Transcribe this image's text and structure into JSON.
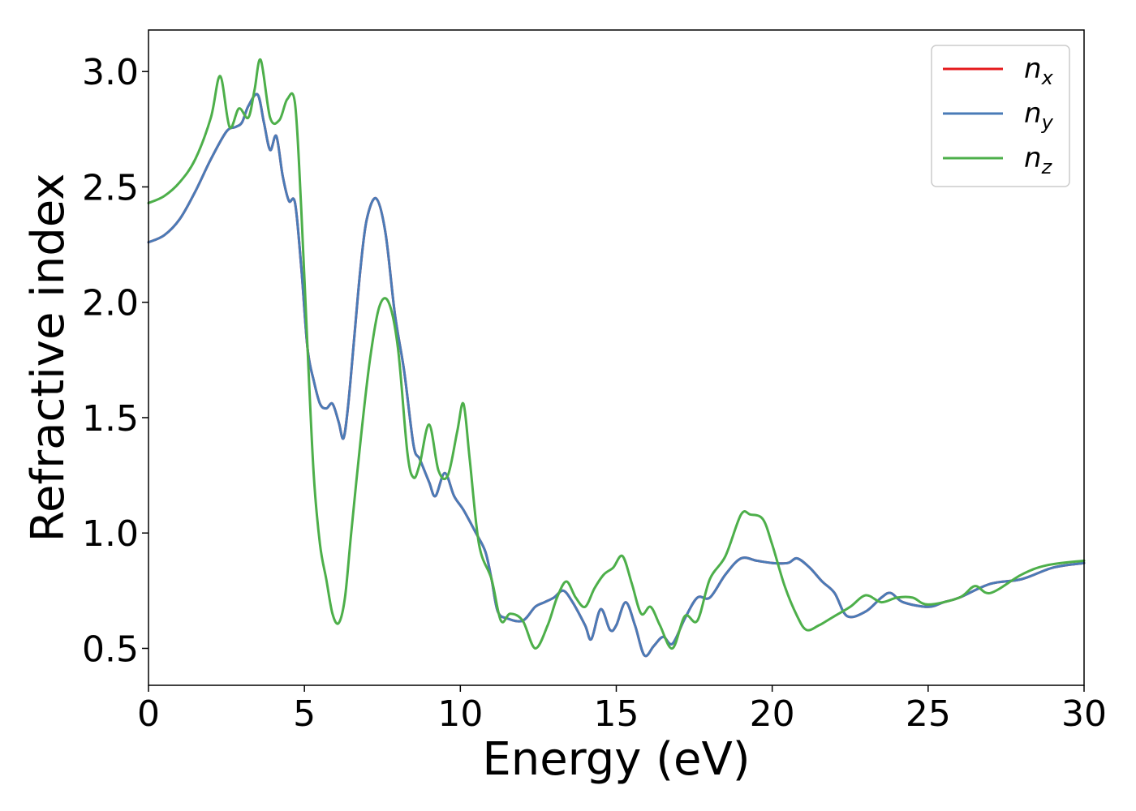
{
  "chart_data": {
    "type": "line",
    "title": "",
    "xlabel": "Energy (eV)",
    "ylabel": "Refractive index",
    "xlim": [
      0,
      30
    ],
    "ylim": [
      0.34,
      3.18
    ],
    "xticks": [
      0,
      5,
      10,
      15,
      20,
      25,
      30
    ],
    "xtick_labels": [
      "0",
      "5",
      "10",
      "15",
      "20",
      "25",
      "30"
    ],
    "yticks": [
      0.5,
      1.0,
      1.5,
      2.0,
      2.5,
      3.0
    ],
    "ytick_labels": [
      "0.5",
      "1.0",
      "1.5",
      "2.0",
      "2.5",
      "3.0"
    ],
    "grid": false,
    "legend_position": "top-right",
    "series": [
      {
        "name": "n_x",
        "label_base": "n",
        "label_sub": "x",
        "color": "#e41a1c",
        "x": [
          0,
          0.5,
          1.0,
          1.5,
          2.0,
          2.5,
          2.8,
          3.0,
          3.2,
          3.5,
          3.7,
          3.9,
          4.1,
          4.3,
          4.5,
          4.7,
          4.9,
          5.1,
          5.3,
          5.5,
          5.7,
          5.9,
          6.1,
          6.25,
          6.4,
          6.6,
          6.8,
          7.0,
          7.3,
          7.6,
          7.9,
          8.2,
          8.5,
          8.7,
          9.0,
          9.2,
          9.5,
          9.8,
          10.1,
          10.5,
          10.8,
          11.0,
          11.2,
          11.5,
          12.0,
          12.4,
          12.7,
          13.0,
          13.3,
          13.6,
          14.0,
          14.2,
          14.5,
          14.8,
          15.0,
          15.3,
          15.6,
          15.9,
          16.2,
          16.5,
          16.8,
          17.2,
          17.6,
          18.0,
          18.5,
          19.0,
          19.5,
          20.0,
          20.5,
          20.8,
          21.2,
          21.6,
          22.0,
          22.4,
          23.0,
          23.5,
          23.8,
          24.2,
          25.0,
          25.5,
          26.0,
          27.0,
          28.0,
          29.0,
          30.0
        ],
        "y": [
          2.26,
          2.29,
          2.36,
          2.48,
          2.62,
          2.74,
          2.76,
          2.78,
          2.85,
          2.9,
          2.78,
          2.66,
          2.72,
          2.55,
          2.44,
          2.43,
          2.15,
          1.8,
          1.66,
          1.56,
          1.54,
          1.56,
          1.48,
          1.41,
          1.55,
          1.85,
          2.15,
          2.36,
          2.45,
          2.3,
          1.95,
          1.7,
          1.38,
          1.32,
          1.22,
          1.16,
          1.26,
          1.16,
          1.1,
          1.0,
          0.92,
          0.8,
          0.66,
          0.63,
          0.62,
          0.68,
          0.7,
          0.72,
          0.75,
          0.7,
          0.6,
          0.54,
          0.67,
          0.58,
          0.6,
          0.7,
          0.6,
          0.47,
          0.51,
          0.55,
          0.52,
          0.63,
          0.72,
          0.72,
          0.82,
          0.89,
          0.88,
          0.87,
          0.87,
          0.89,
          0.85,
          0.79,
          0.74,
          0.64,
          0.66,
          0.72,
          0.74,
          0.7,
          0.68,
          0.7,
          0.72,
          0.78,
          0.8,
          0.85,
          0.87
        ]
      },
      {
        "name": "n_y",
        "label_base": "n",
        "label_sub": "y",
        "color": "#4a7bb7",
        "x": [
          0,
          0.5,
          1.0,
          1.5,
          2.0,
          2.5,
          2.8,
          3.0,
          3.2,
          3.5,
          3.7,
          3.9,
          4.1,
          4.3,
          4.5,
          4.7,
          4.9,
          5.1,
          5.3,
          5.5,
          5.7,
          5.9,
          6.1,
          6.25,
          6.4,
          6.6,
          6.8,
          7.0,
          7.3,
          7.6,
          7.9,
          8.2,
          8.5,
          8.7,
          9.0,
          9.2,
          9.5,
          9.8,
          10.1,
          10.5,
          10.8,
          11.0,
          11.2,
          11.5,
          12.0,
          12.4,
          12.7,
          13.0,
          13.3,
          13.6,
          14.0,
          14.2,
          14.5,
          14.8,
          15.0,
          15.3,
          15.6,
          15.9,
          16.2,
          16.5,
          16.8,
          17.2,
          17.6,
          18.0,
          18.5,
          19.0,
          19.5,
          20.0,
          20.5,
          20.8,
          21.2,
          21.6,
          22.0,
          22.4,
          23.0,
          23.5,
          23.8,
          24.2,
          25.0,
          25.5,
          26.0,
          27.0,
          28.0,
          29.0,
          30.0
        ],
        "y": [
          2.26,
          2.29,
          2.36,
          2.48,
          2.62,
          2.74,
          2.76,
          2.78,
          2.85,
          2.9,
          2.78,
          2.66,
          2.72,
          2.55,
          2.44,
          2.43,
          2.15,
          1.8,
          1.66,
          1.56,
          1.54,
          1.56,
          1.48,
          1.41,
          1.55,
          1.85,
          2.15,
          2.36,
          2.45,
          2.3,
          1.95,
          1.7,
          1.38,
          1.32,
          1.22,
          1.16,
          1.26,
          1.16,
          1.1,
          1.0,
          0.92,
          0.8,
          0.66,
          0.63,
          0.62,
          0.68,
          0.7,
          0.72,
          0.75,
          0.7,
          0.6,
          0.54,
          0.67,
          0.58,
          0.6,
          0.7,
          0.6,
          0.47,
          0.51,
          0.55,
          0.52,
          0.63,
          0.72,
          0.72,
          0.82,
          0.89,
          0.88,
          0.87,
          0.87,
          0.89,
          0.85,
          0.79,
          0.74,
          0.64,
          0.66,
          0.72,
          0.74,
          0.7,
          0.68,
          0.7,
          0.72,
          0.78,
          0.8,
          0.85,
          0.87
        ]
      },
      {
        "name": "n_z",
        "label_base": "n",
        "label_sub": "z",
        "color": "#4daf4a",
        "x": [
          0,
          0.5,
          1.0,
          1.5,
          2.0,
          2.3,
          2.6,
          2.9,
          3.2,
          3.4,
          3.6,
          3.9,
          4.2,
          4.45,
          4.7,
          4.9,
          5.1,
          5.3,
          5.5,
          5.7,
          5.9,
          6.1,
          6.3,
          6.5,
          6.8,
          7.1,
          7.4,
          7.7,
          8.0,
          8.3,
          8.5,
          8.7,
          9.0,
          9.3,
          9.6,
          9.9,
          10.1,
          10.3,
          10.6,
          11.0,
          11.3,
          11.6,
          12.0,
          12.4,
          12.8,
          13.1,
          13.4,
          13.7,
          14.0,
          14.3,
          14.6,
          14.9,
          15.2,
          15.5,
          15.8,
          16.1,
          16.4,
          16.8,
          17.2,
          17.6,
          18.0,
          18.5,
          19.0,
          19.3,
          19.7,
          20.0,
          20.4,
          20.8,
          21.1,
          21.5,
          22.0,
          22.5,
          23.0,
          23.5,
          24.0,
          24.5,
          25.0,
          26.0,
          26.5,
          27.0,
          28.0,
          28.8,
          30.0
        ],
        "y": [
          2.43,
          2.46,
          2.52,
          2.62,
          2.8,
          2.98,
          2.76,
          2.84,
          2.8,
          2.92,
          3.05,
          2.8,
          2.79,
          2.88,
          2.86,
          2.4,
          1.8,
          1.25,
          0.95,
          0.8,
          0.65,
          0.61,
          0.72,
          1.0,
          1.4,
          1.75,
          1.98,
          2.0,
          1.8,
          1.35,
          1.24,
          1.3,
          1.47,
          1.27,
          1.25,
          1.44,
          1.56,
          1.32,
          0.95,
          0.8,
          0.62,
          0.65,
          0.62,
          0.5,
          0.6,
          0.72,
          0.79,
          0.72,
          0.68,
          0.76,
          0.82,
          0.85,
          0.9,
          0.78,
          0.65,
          0.68,
          0.6,
          0.5,
          0.64,
          0.62,
          0.8,
          0.9,
          1.08,
          1.08,
          1.06,
          0.95,
          0.77,
          0.64,
          0.58,
          0.6,
          0.64,
          0.68,
          0.73,
          0.7,
          0.72,
          0.72,
          0.69,
          0.72,
          0.77,
          0.74,
          0.82,
          0.86,
          0.88
        ]
      }
    ]
  }
}
